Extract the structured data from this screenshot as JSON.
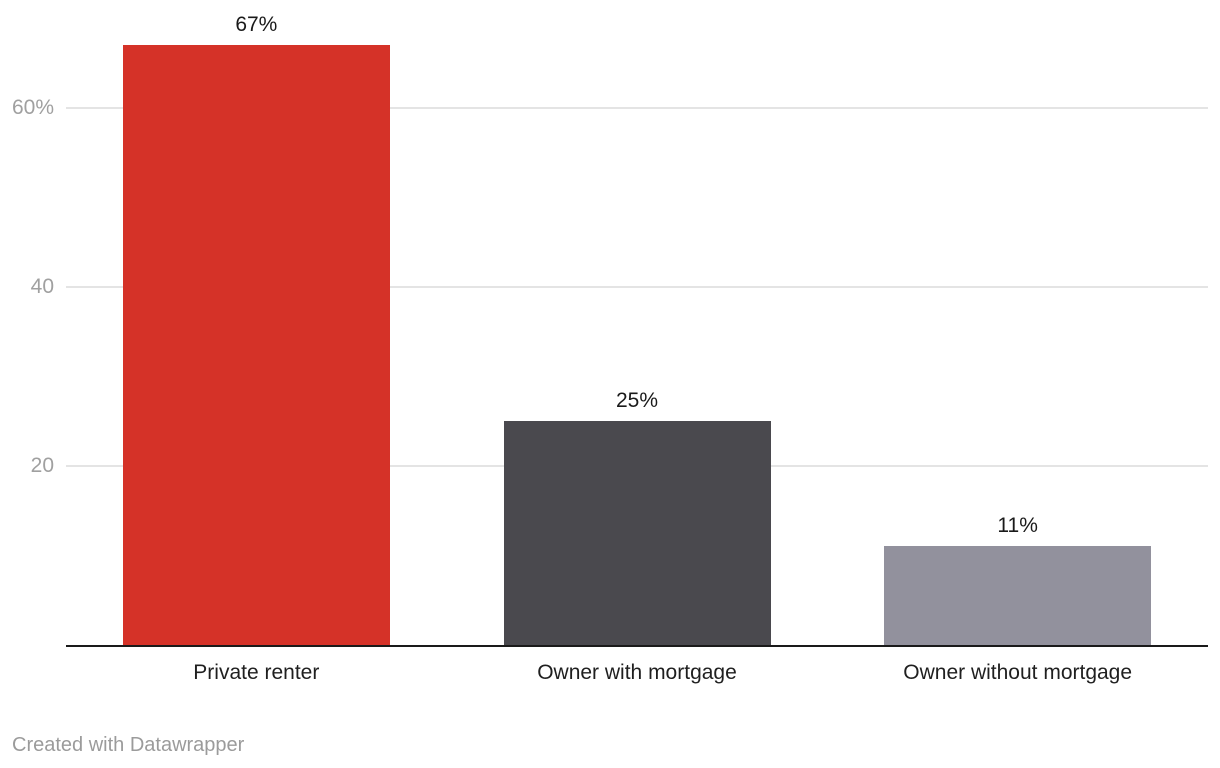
{
  "chart_data": {
    "type": "bar",
    "title": "",
    "xlabel": "",
    "ylabel": "",
    "categories": [
      "Private renter",
      "Owner with mortgage",
      "Owner without mortgage"
    ],
    "values": [
      67,
      25,
      11
    ],
    "value_labels": [
      "67%",
      "25%",
      "11%"
    ],
    "bar_colors": [
      "#d53228",
      "#4a494e",
      "#92919d"
    ],
    "y_ticks": [
      {
        "value": 20,
        "label": "20"
      },
      {
        "value": 40,
        "label": "40"
      },
      {
        "value": 60,
        "label": "60%"
      }
    ],
    "ylim": [
      0,
      72
    ],
    "grid": true,
    "legend": "none"
  },
  "footer": {
    "credit": "Created with Datawrapper"
  },
  "colors": {
    "background": "#ffffff",
    "grid": "#e4e4e4",
    "axis": "#1a1a1a",
    "tick_label": "#a0a0a0",
    "value_label": "#1a1a1a",
    "category_label": "#1f1f1f",
    "footer_text": "#9b9b9b"
  }
}
